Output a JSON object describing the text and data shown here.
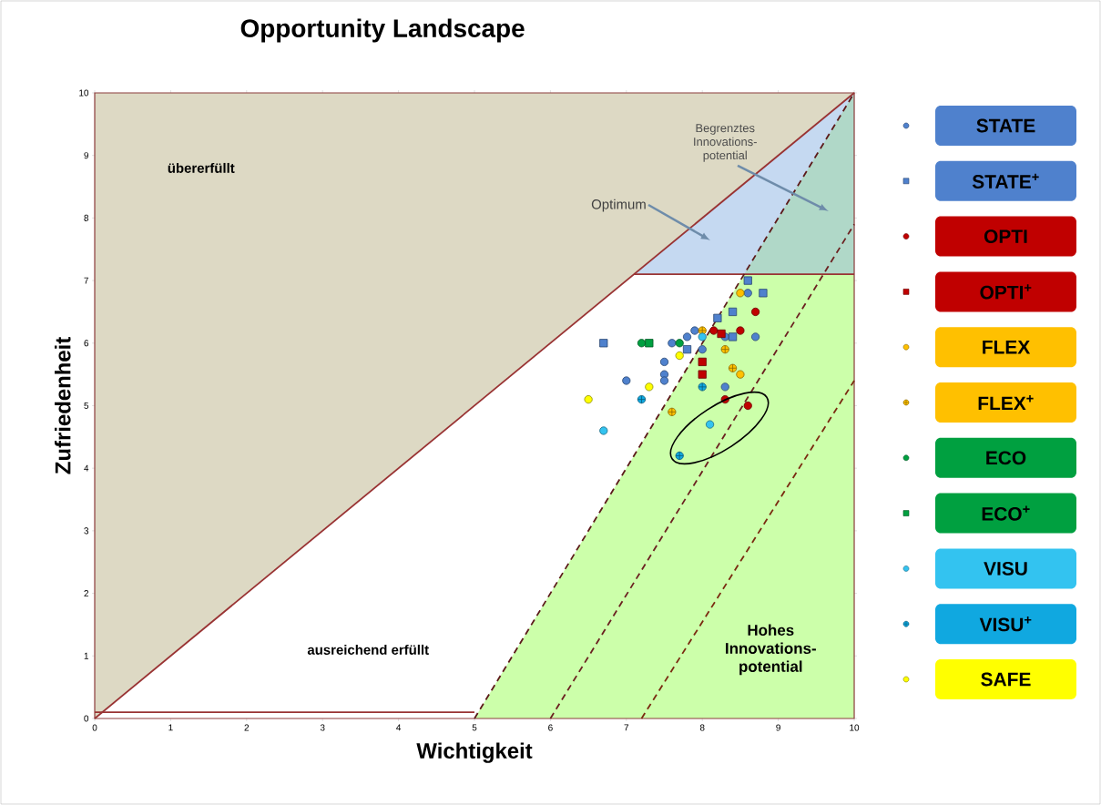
{
  "chart_data": {
    "type": "scatter",
    "title": "Opportunity Landscape",
    "xlabel": "Wichtigkeit",
    "ylabel": "Zufriedenheit",
    "xlim": [
      0,
      10
    ],
    "ylim": [
      0,
      10
    ],
    "xticks": [
      0,
      1,
      2,
      3,
      4,
      5,
      6,
      7,
      8,
      9,
      10
    ],
    "yticks": [
      0,
      1,
      2,
      3,
      4,
      5,
      6,
      7,
      8,
      9,
      10
    ],
    "grid": false,
    "legend": "right",
    "series": [
      {
        "type": "line",
        "color": "#993333",
        "line_style": "solid",
        "x": [
          0,
          10
        ],
        "values": [
          0,
          10
        ]
      },
      {
        "type": "line",
        "color": "#993333",
        "line_style": "solid",
        "x": [
          7.1,
          10
        ],
        "values": [
          7.1,
          7.1
        ]
      },
      {
        "type": "line",
        "color": "#993333",
        "line_style": "solid",
        "x": [
          0,
          5
        ],
        "values": [
          0.1,
          0.1
        ]
      },
      {
        "type": "line",
        "color": "#5c1a1a",
        "line_style": "dashed",
        "x": [
          5,
          10
        ],
        "values": [
          0,
          10
        ]
      },
      {
        "type": "line",
        "color": "#6b2020",
        "line_style": "dashed",
        "x": [
          6,
          10
        ],
        "values": [
          0,
          7.9
        ]
      },
      {
        "type": "line",
        "color": "#7a2a10",
        "line_style": "dashed",
        "x": [
          7.2,
          10
        ],
        "values": [
          0,
          5.4
        ]
      },
      {
        "name": "STATE",
        "color": "#4f81cd",
        "marker": "circle",
        "x": [
          8.6,
          7.9,
          7.8,
          7.6,
          8.0,
          8.3,
          8.7,
          7.5,
          7.5,
          7.5,
          7.0,
          8.3
        ],
        "values": [
          6.8,
          6.2,
          6.1,
          6.0,
          5.9,
          6.1,
          6.1,
          5.7,
          5.5,
          5.4,
          5.4,
          5.3
        ]
      },
      {
        "name": "STATE$^{+}$",
        "color": "#4f81cd",
        "marker": "square",
        "x": [
          6.7,
          8.8,
          8.6,
          8.4,
          8.2,
          8.4,
          7.8
        ],
        "values": [
          6.0,
          6.8,
          7.0,
          6.5,
          6.4,
          6.1,
          5.9
        ]
      },
      {
        "name": "OPTI",
        "color": "#c00000",
        "marker": "circle",
        "x": [
          8.7,
          8.5,
          8.15,
          8.3,
          8.6
        ],
        "values": [
          6.5,
          6.2,
          6.2,
          5.1,
          5.0
        ]
      },
      {
        "name": "OPTI$^{+}$",
        "color": "#c00000",
        "marker": "square",
        "x": [
          8.25,
          8.0,
          8.0
        ],
        "values": [
          6.15,
          5.7,
          5.5
        ]
      },
      {
        "name": "FLEX",
        "color": "#ffc000",
        "marker": "circle",
        "x": [
          8.5,
          8.5
        ],
        "values": [
          6.8,
          5.5
        ]
      },
      {
        "name": "FLEX$^{+}$",
        "color": "#ffc000",
        "marker": "cross",
        "x": [
          8.0,
          8.3,
          8.4,
          7.6
        ],
        "values": [
          6.2,
          5.9,
          5.6,
          4.9
        ]
      },
      {
        "name": "ECO",
        "color": "#00a040",
        "marker": "circle",
        "x": [
          7.2,
          7.7
        ],
        "values": [
          6.0,
          6.0
        ]
      },
      {
        "name": "ECO$^{+}$",
        "color": "#00a040",
        "marker": "square",
        "x": [
          7.3
        ],
        "values": [
          6.0
        ]
      },
      {
        "name": "VISU",
        "color": "#33c3f0",
        "marker": "circle",
        "x": [
          8.0,
          6.7,
          8.1
        ],
        "values": [
          6.1,
          4.6,
          4.7
        ]
      },
      {
        "name": "VISU$^{+}$",
        "color": "#10a8e0",
        "marker": "cross",
        "x": [
          7.2,
          8.0,
          7.7
        ],
        "values": [
          5.1,
          5.3,
          4.2
        ]
      },
      {
        "name": "SAFE",
        "color": "#ffff00",
        "marker": "circle",
        "x": [
          6.5,
          7.3,
          7.7
        ],
        "values": [
          5.1,
          5.3,
          5.8
        ]
      }
    ],
    "annotations": [
      "übererfüllt",
      "Optimum",
      "Begrenztes Innovations-potential",
      "ausreichend erfüllt",
      "Hohes Innovations-potential"
    ]
  }
}
